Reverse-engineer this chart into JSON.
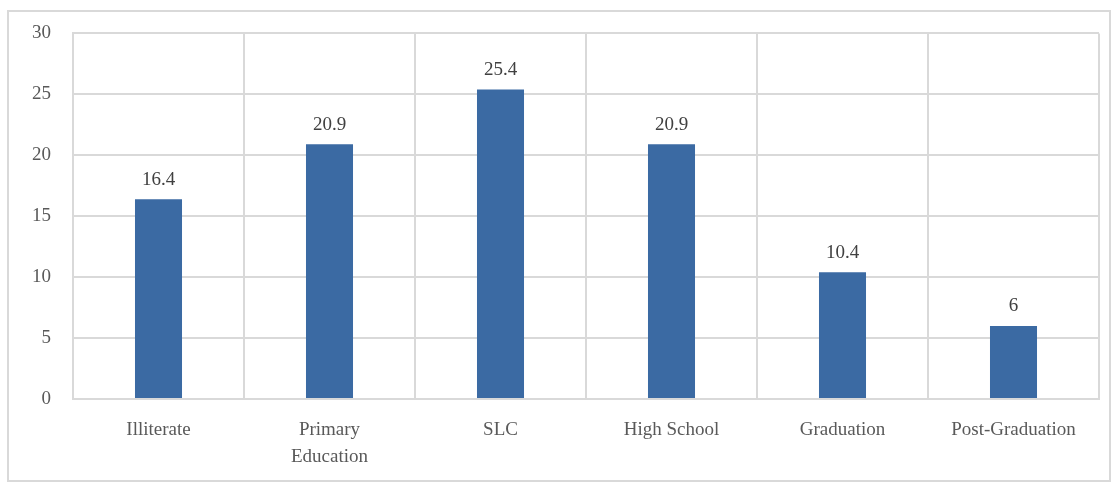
{
  "chart_data": {
    "type": "bar",
    "categories": [
      "Illiterate",
      "Primary Education",
      "SLC",
      "High School",
      "Graduation",
      "Post-Graduation"
    ],
    "values": [
      16.4,
      20.9,
      25.4,
      20.9,
      10.4,
      6
    ],
    "color": "#3b6aa3",
    "ylim": [
      0,
      30
    ],
    "yticks": [
      0,
      5,
      10,
      15,
      20,
      25,
      30
    ],
    "grid": true,
    "data_labels": true
  }
}
